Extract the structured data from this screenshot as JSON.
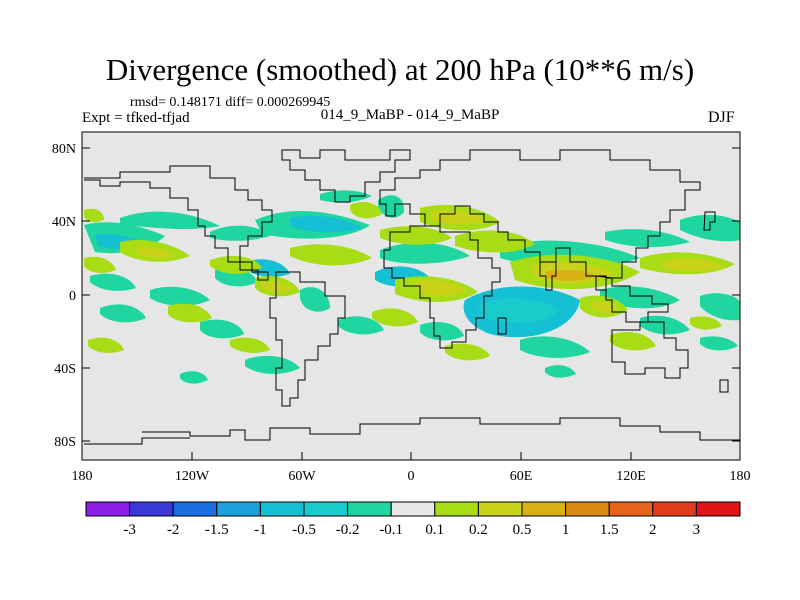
{
  "title": "Divergence (smoothed) at 200 hPa (10**6 m/s)",
  "stats": "rmsd= 0.148171 diff= 0.000269945",
  "experiment": "Expt = tfked-tfjad",
  "comparison": "014_9_MaBP - 014_9_MaBP",
  "season": "DJF",
  "lat_ticks": [
    "80N",
    "40N",
    "0",
    "40S",
    "80S"
  ],
  "lon_ticks": [
    "180",
    "120W",
    "60W",
    "0",
    "60E",
    "120E",
    "180"
  ],
  "colorbar": {
    "labels": [
      "-3",
      "-2",
      "-1.5",
      "-1",
      "-0.5",
      "-0.2",
      "-0.1",
      "0.1",
      "0.2",
      "0.5",
      "1",
      "1.5",
      "2",
      "3"
    ],
    "colors": [
      "#8c1ee6",
      "#3a38d8",
      "#1a6ee0",
      "#1ea0dc",
      "#16c0d4",
      "#18cccc",
      "#20d6a0",
      "#e6e6e6",
      "#a8dc14",
      "#c8d218",
      "#d6b014",
      "#dc8a14",
      "#e4641a",
      "#e03c1c",
      "#e01414"
    ]
  },
  "field_colors": {
    "background": "#e6e6e6",
    "neg_weak": "#20d6a0",
    "neg_mid": "#18cccc",
    "neg_strong": "#16c0d4",
    "pos_weak": "#a8dc14",
    "pos_mid": "#c8d218",
    "pos_strong": "#d6b014"
  }
}
